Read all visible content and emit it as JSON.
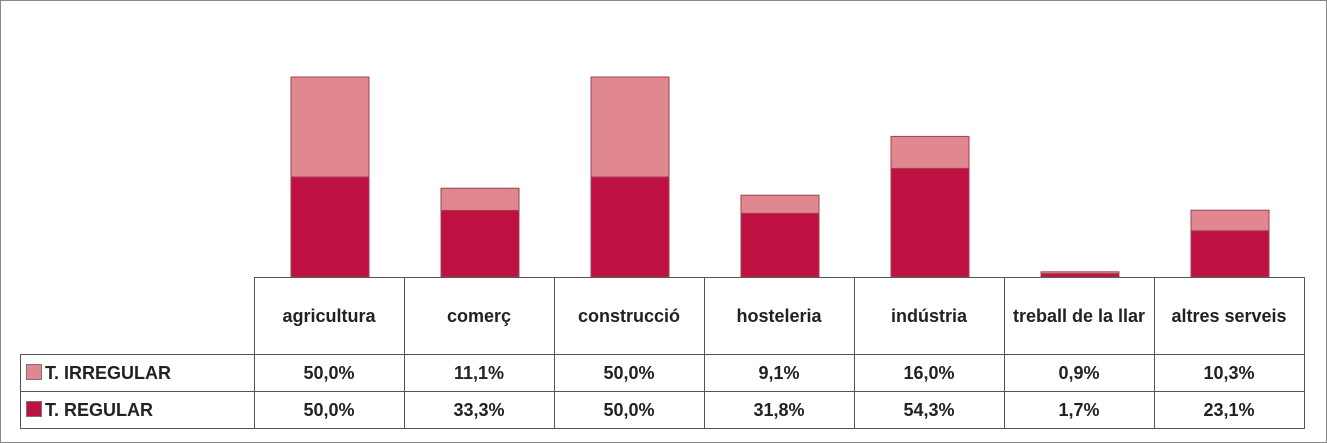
{
  "chart_data": {
    "type": "bar",
    "stacked": true,
    "categories": [
      "agricultura",
      "comerç",
      "construcció",
      "hosteleria",
      "indústria",
      "treball de la llar",
      "altres serveis"
    ],
    "series": [
      {
        "name": "T. IRREGULAR",
        "color": "#e08790",
        "values": [
          50,
          11.1,
          50,
          9.1,
          16,
          0.9,
          10.3
        ],
        "value_labels": [
          "50,0%",
          "11,1%",
          "50,0%",
          "9,1%",
          "16,0%",
          "0,9%",
          "10,3%"
        ]
      },
      {
        "name": "T. REGULAR",
        "color": "#be1142",
        "values": [
          50,
          33.3,
          50,
          31.8,
          54.3,
          1.7,
          23.1
        ],
        "value_labels": [
          "50,0%",
          "33,3%",
          "50,0%",
          "31,8%",
          "54,3%",
          "1,7%",
          "23,1%"
        ]
      }
    ]
  }
}
